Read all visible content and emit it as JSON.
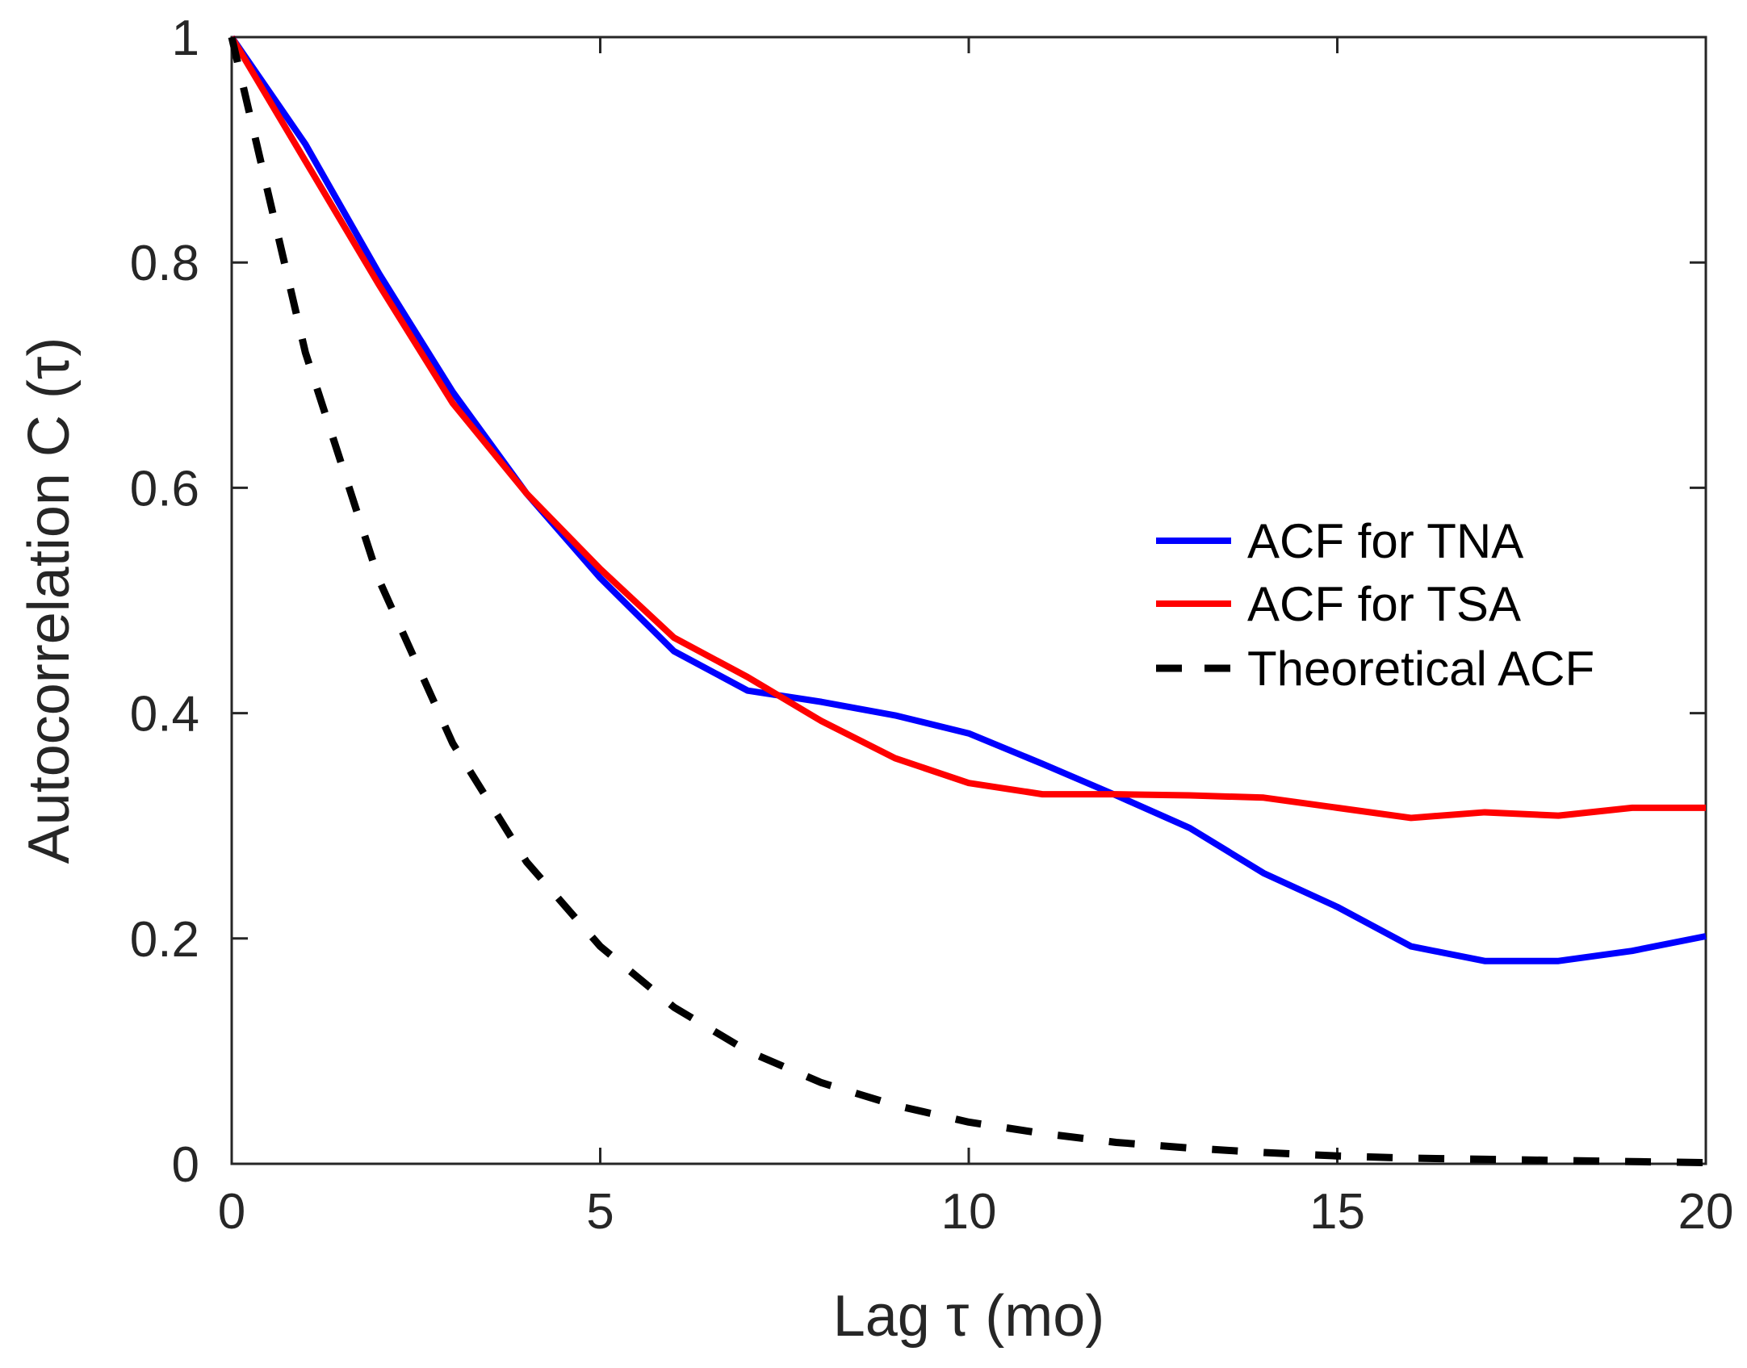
{
  "chart_data": {
    "type": "line",
    "title": "",
    "xlabel": "Lag τ (mo)",
    "ylabel": "Autocorrelation C (τ)",
    "xlim": [
      0,
      20
    ],
    "ylim": [
      0,
      1
    ],
    "x_ticks": [
      0,
      5,
      10,
      15,
      20
    ],
    "y_ticks": [
      0,
      0.2,
      0.4,
      0.6,
      0.8,
      1
    ],
    "x_tick_labels": [
      "0",
      "5",
      "10",
      "15",
      "20"
    ],
    "y_tick_labels": [
      "0",
      "0.2",
      "0.4",
      "0.6",
      "0.8",
      "1"
    ],
    "grid": false,
    "legend_position": "right-middle",
    "x": [
      0,
      1,
      2,
      3,
      4,
      5,
      6,
      7,
      8,
      9,
      10,
      11,
      12,
      13,
      14,
      15,
      16,
      17,
      18,
      19,
      20
    ],
    "series": [
      {
        "name": "ACF for TNA",
        "color": "#0000ff",
        "style": "solid",
        "values": [
          1.0,
          0.905,
          0.79,
          0.685,
          0.595,
          0.52,
          0.455,
          0.42,
          0.41,
          0.398,
          0.382,
          0.355,
          0.327,
          0.298,
          0.258,
          0.228,
          0.193,
          0.18,
          0.18,
          0.189,
          0.202
        ]
      },
      {
        "name": "ACF for TSA",
        "color": "#ff0000",
        "style": "solid",
        "values": [
          1.0,
          0.89,
          0.78,
          0.675,
          0.595,
          0.528,
          0.467,
          0.432,
          0.393,
          0.36,
          0.338,
          0.328,
          0.328,
          0.327,
          0.325,
          0.316,
          0.307,
          0.312,
          0.309,
          0.316,
          0.316
        ]
      },
      {
        "name": "Theoretical ACF",
        "color": "#000000",
        "style": "dashed",
        "values": [
          1.0,
          0.72,
          0.518,
          0.373,
          0.268,
          0.193,
          0.139,
          0.1,
          0.072,
          0.052,
          0.037,
          0.027,
          0.019,
          0.014,
          0.01,
          0.007,
          0.005,
          0.004,
          0.003,
          0.002,
          0.001
        ]
      }
    ]
  }
}
